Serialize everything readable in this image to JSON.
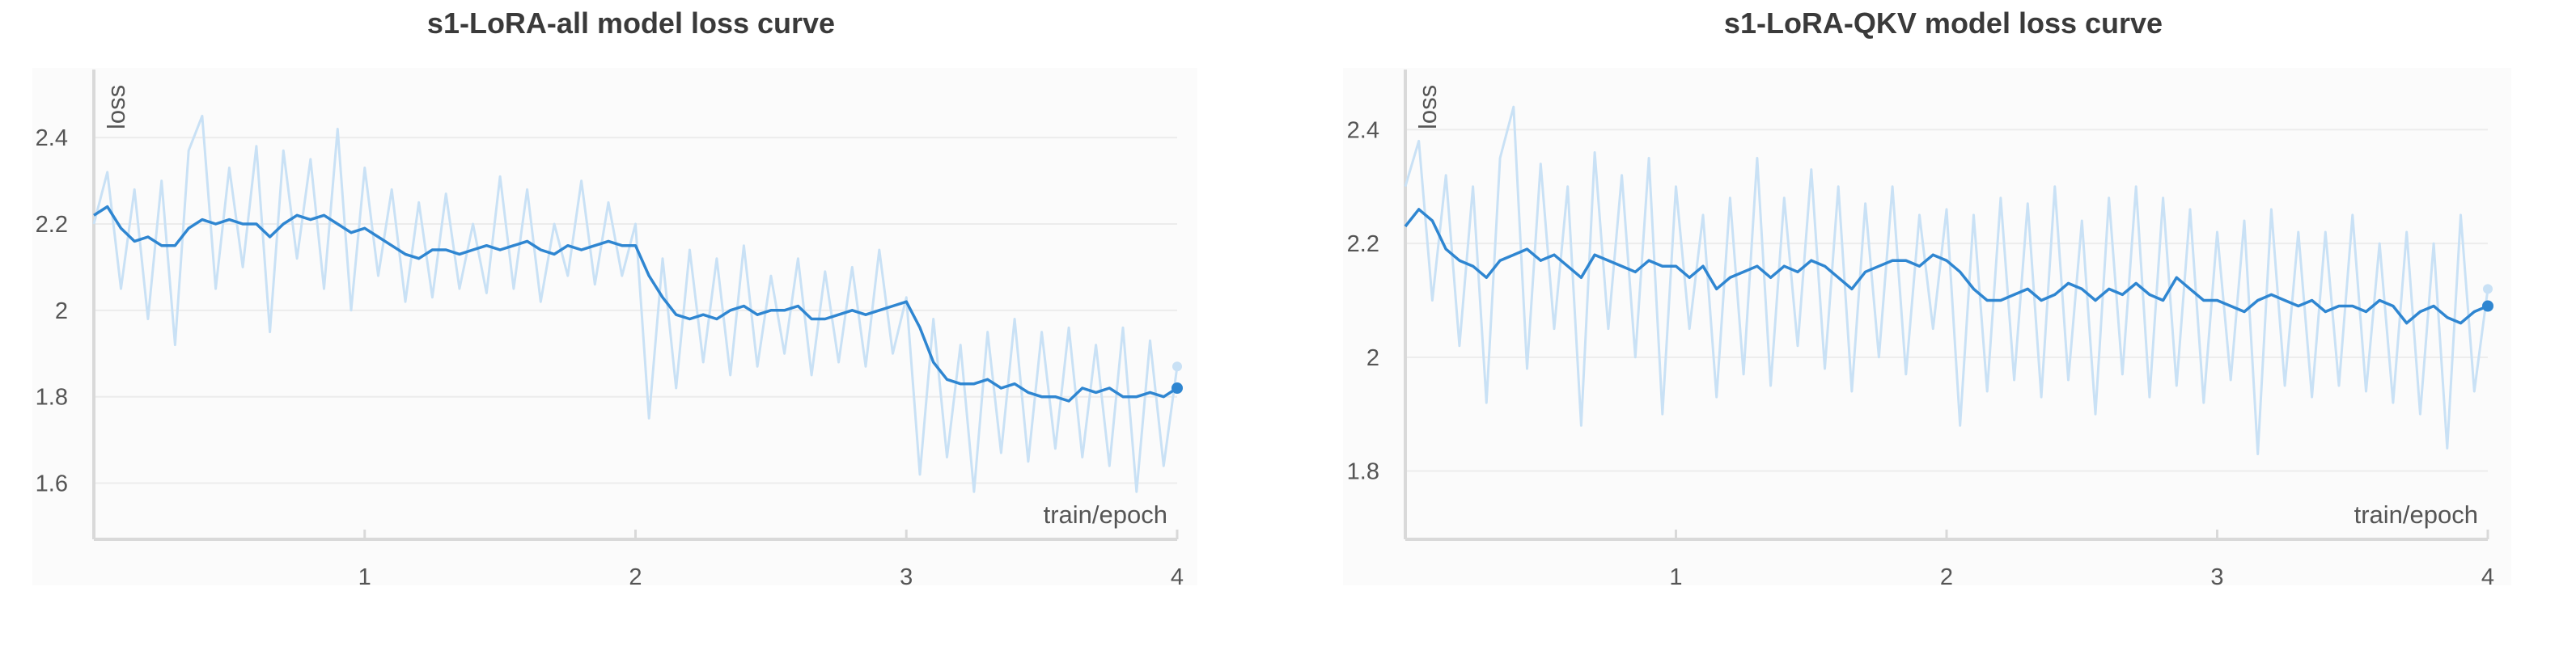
{
  "chart_data": [
    {
      "type": "line",
      "title": "s1-LoRA-all model loss curve",
      "xlabel": "train/epoch",
      "ylabel": "loss",
      "xlim": [
        0,
        4
      ],
      "ylim": [
        1.47,
        2.55
      ],
      "x_ticks": [
        1,
        2,
        3,
        4
      ],
      "x_tick_labels": [
        "1",
        "2",
        "3",
        "4"
      ],
      "y_ticks": [
        1.6,
        1.8,
        2.0,
        2.2,
        2.4
      ],
      "y_tick_labels": [
        "1.6",
        "1.8",
        "2",
        "2.2",
        "2.4"
      ],
      "grid": true,
      "colors": {
        "smoothed": "#2f86d1",
        "raw": "#c9e1f5",
        "grid": "#ececec",
        "axis": "#d9d9d9",
        "plot_bg": "#fbfbfb"
      },
      "series": [
        {
          "smoothed": true,
          "x": [
            0,
            0.05,
            0.1,
            0.15,
            0.2,
            0.25,
            0.3,
            0.35,
            0.4,
            0.45,
            0.5,
            0.55,
            0.6,
            0.65,
            0.7,
            0.75,
            0.8,
            0.85,
            0.9,
            0.95,
            1.0,
            1.05,
            1.1,
            1.15,
            1.2,
            1.25,
            1.3,
            1.35,
            1.4,
            1.45,
            1.5,
            1.55,
            1.6,
            1.65,
            1.7,
            1.75,
            1.8,
            1.85,
            1.9,
            1.95,
            2.0,
            2.05,
            2.1,
            2.15,
            2.2,
            2.25,
            2.3,
            2.35,
            2.4,
            2.45,
            2.5,
            2.55,
            2.6,
            2.65,
            2.7,
            2.75,
            2.8,
            2.85,
            2.9,
            2.95,
            3.0,
            3.05,
            3.1,
            3.15,
            3.2,
            3.25,
            3.3,
            3.35,
            3.4,
            3.45,
            3.5,
            3.55,
            3.6,
            3.65,
            3.7,
            3.75,
            3.8,
            3.85,
            3.9,
            3.95,
            4.0
          ],
          "values": [
            2.22,
            2.24,
            2.19,
            2.16,
            2.17,
            2.15,
            2.15,
            2.19,
            2.21,
            2.2,
            2.21,
            2.2,
            2.2,
            2.17,
            2.2,
            2.22,
            2.21,
            2.22,
            2.2,
            2.18,
            2.19,
            2.17,
            2.15,
            2.13,
            2.12,
            2.14,
            2.14,
            2.13,
            2.14,
            2.15,
            2.14,
            2.15,
            2.16,
            2.14,
            2.13,
            2.15,
            2.14,
            2.15,
            2.16,
            2.15,
            2.15,
            2.08,
            2.03,
            1.99,
            1.98,
            1.99,
            1.98,
            2.0,
            2.01,
            1.99,
            2.0,
            2.0,
            2.01,
            1.98,
            1.98,
            1.99,
            2.0,
            1.99,
            2.0,
            2.01,
            2.02,
            1.96,
            1.88,
            1.84,
            1.83,
            1.83,
            1.84,
            1.82,
            1.83,
            1.81,
            1.8,
            1.8,
            1.79,
            1.82,
            1.81,
            1.82,
            1.8,
            1.8,
            1.81,
            1.8,
            1.82
          ]
        },
        {
          "smoothed": false,
          "x": [
            0,
            0.05,
            0.1,
            0.15,
            0.2,
            0.25,
            0.3,
            0.35,
            0.4,
            0.45,
            0.5,
            0.55,
            0.6,
            0.65,
            0.7,
            0.75,
            0.8,
            0.85,
            0.9,
            0.95,
            1.0,
            1.05,
            1.1,
            1.15,
            1.2,
            1.25,
            1.3,
            1.35,
            1.4,
            1.45,
            1.5,
            1.55,
            1.6,
            1.65,
            1.7,
            1.75,
            1.8,
            1.85,
            1.9,
            1.95,
            2.0,
            2.05,
            2.1,
            2.15,
            2.2,
            2.25,
            2.3,
            2.35,
            2.4,
            2.45,
            2.5,
            2.55,
            2.6,
            2.65,
            2.7,
            2.75,
            2.8,
            2.85,
            2.9,
            2.95,
            3.0,
            3.05,
            3.1,
            3.15,
            3.2,
            3.25,
            3.3,
            3.35,
            3.4,
            3.45,
            3.5,
            3.55,
            3.6,
            3.65,
            3.7,
            3.75,
            3.8,
            3.85,
            3.9,
            3.95,
            4.0
          ],
          "values": [
            2.2,
            2.32,
            2.05,
            2.28,
            1.98,
            2.3,
            1.92,
            2.37,
            2.45,
            2.05,
            2.33,
            2.1,
            2.38,
            1.95,
            2.37,
            2.12,
            2.35,
            2.05,
            2.42,
            2.0,
            2.33,
            2.08,
            2.28,
            2.02,
            2.25,
            2.03,
            2.27,
            2.05,
            2.2,
            2.04,
            2.31,
            2.05,
            2.28,
            2.02,
            2.2,
            2.08,
            2.3,
            2.06,
            2.25,
            2.08,
            2.2,
            1.75,
            2.12,
            1.82,
            2.14,
            1.88,
            2.12,
            1.85,
            2.15,
            1.87,
            2.08,
            1.9,
            2.12,
            1.85,
            2.09,
            1.88,
            2.1,
            1.87,
            2.14,
            1.9,
            2.03,
            1.62,
            1.98,
            1.66,
            1.92,
            1.58,
            1.95,
            1.67,
            1.98,
            1.65,
            1.95,
            1.68,
            1.96,
            1.66,
            1.92,
            1.64,
            1.96,
            1.58,
            1.93,
            1.64,
            1.87
          ]
        }
      ]
    },
    {
      "type": "line",
      "title": "s1-LoRA-QKV model loss curve",
      "xlabel": "train/epoch",
      "ylabel": "loss",
      "xlim": [
        0,
        4
      ],
      "ylim": [
        1.68,
        2.5
      ],
      "x_ticks": [
        1,
        2,
        3,
        4
      ],
      "x_tick_labels": [
        "1",
        "2",
        "3",
        "4"
      ],
      "y_ticks": [
        1.8,
        2.0,
        2.2,
        2.4
      ],
      "y_tick_labels": [
        "1.8",
        "2",
        "2.2",
        "2.4"
      ],
      "grid": true,
      "colors": {
        "smoothed": "#2f86d1",
        "raw": "#c9e1f5",
        "grid": "#ececec",
        "axis": "#d9d9d9",
        "plot_bg": "#fbfbfb"
      },
      "series": [
        {
          "smoothed": true,
          "x": [
            0,
            0.05,
            0.1,
            0.15,
            0.2,
            0.25,
            0.3,
            0.35,
            0.4,
            0.45,
            0.5,
            0.55,
            0.6,
            0.65,
            0.7,
            0.75,
            0.8,
            0.85,
            0.9,
            0.95,
            1.0,
            1.05,
            1.1,
            1.15,
            1.2,
            1.25,
            1.3,
            1.35,
            1.4,
            1.45,
            1.5,
            1.55,
            1.6,
            1.65,
            1.7,
            1.75,
            1.8,
            1.85,
            1.9,
            1.95,
            2.0,
            2.05,
            2.1,
            2.15,
            2.2,
            2.25,
            2.3,
            2.35,
            2.4,
            2.45,
            2.5,
            2.55,
            2.6,
            2.65,
            2.7,
            2.75,
            2.8,
            2.85,
            2.9,
            2.95,
            3.0,
            3.05,
            3.1,
            3.15,
            3.2,
            3.25,
            3.3,
            3.35,
            3.4,
            3.45,
            3.5,
            3.55,
            3.6,
            3.65,
            3.7,
            3.75,
            3.8,
            3.85,
            3.9,
            3.95,
            4.0
          ],
          "values": [
            2.23,
            2.26,
            2.24,
            2.19,
            2.17,
            2.16,
            2.14,
            2.17,
            2.18,
            2.19,
            2.17,
            2.18,
            2.16,
            2.14,
            2.18,
            2.17,
            2.16,
            2.15,
            2.17,
            2.16,
            2.16,
            2.14,
            2.16,
            2.12,
            2.14,
            2.15,
            2.16,
            2.14,
            2.16,
            2.15,
            2.17,
            2.16,
            2.14,
            2.12,
            2.15,
            2.16,
            2.17,
            2.17,
            2.16,
            2.18,
            2.17,
            2.15,
            2.12,
            2.1,
            2.1,
            2.11,
            2.12,
            2.1,
            2.11,
            2.13,
            2.12,
            2.1,
            2.12,
            2.11,
            2.13,
            2.11,
            2.1,
            2.14,
            2.12,
            2.1,
            2.1,
            2.09,
            2.08,
            2.1,
            2.11,
            2.1,
            2.09,
            2.1,
            2.08,
            2.09,
            2.09,
            2.08,
            2.1,
            2.09,
            2.06,
            2.08,
            2.09,
            2.07,
            2.06,
            2.08,
            2.09
          ]
        },
        {
          "smoothed": false,
          "x": [
            0,
            0.05,
            0.1,
            0.15,
            0.2,
            0.25,
            0.3,
            0.35,
            0.4,
            0.45,
            0.5,
            0.55,
            0.6,
            0.65,
            0.7,
            0.75,
            0.8,
            0.85,
            0.9,
            0.95,
            1.0,
            1.05,
            1.1,
            1.15,
            1.2,
            1.25,
            1.3,
            1.35,
            1.4,
            1.45,
            1.5,
            1.55,
            1.6,
            1.65,
            1.7,
            1.75,
            1.8,
            1.85,
            1.9,
            1.95,
            2.0,
            2.05,
            2.1,
            2.15,
            2.2,
            2.25,
            2.3,
            2.35,
            2.4,
            2.45,
            2.5,
            2.55,
            2.6,
            2.65,
            2.7,
            2.75,
            2.8,
            2.85,
            2.9,
            2.95,
            3.0,
            3.05,
            3.1,
            3.15,
            3.2,
            3.25,
            3.3,
            3.35,
            3.4,
            3.45,
            3.5,
            3.55,
            3.6,
            3.65,
            3.7,
            3.75,
            3.8,
            3.85,
            3.9,
            3.95,
            4.0
          ],
          "values": [
            2.3,
            2.38,
            2.1,
            2.32,
            2.02,
            2.3,
            1.92,
            2.35,
            2.44,
            1.98,
            2.34,
            2.05,
            2.3,
            1.88,
            2.36,
            2.05,
            2.32,
            2.0,
            2.35,
            1.9,
            2.3,
            2.05,
            2.25,
            1.93,
            2.28,
            1.97,
            2.35,
            1.95,
            2.28,
            2.02,
            2.33,
            1.98,
            2.3,
            1.94,
            2.27,
            2.0,
            2.3,
            1.97,
            2.25,
            2.05,
            2.26,
            1.88,
            2.25,
            1.94,
            2.28,
            1.96,
            2.27,
            1.93,
            2.3,
            1.96,
            2.24,
            1.9,
            2.28,
            1.97,
            2.3,
            1.93,
            2.28,
            1.95,
            2.26,
            1.92,
            2.22,
            1.96,
            2.24,
            1.83,
            2.26,
            1.95,
            2.22,
            1.93,
            2.22,
            1.95,
            2.25,
            1.94,
            2.2,
            1.92,
            2.22,
            1.9,
            2.2,
            1.84,
            2.25,
            1.94,
            2.12
          ]
        }
      ]
    }
  ]
}
